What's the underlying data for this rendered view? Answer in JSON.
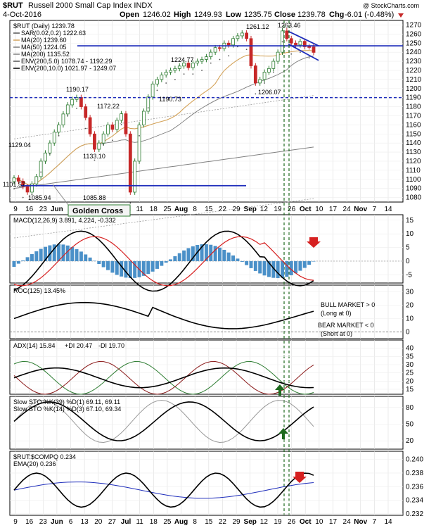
{
  "header": {
    "symbol": "$RUT",
    "name": "Russell 2000 Small Cap Index INDX",
    "site": "@ StockCharts.com",
    "date": "4-Oct-2016",
    "open_label": "Open",
    "open": "1246.02",
    "high_label": "High",
    "high": "1249.93",
    "low_label": "Low",
    "low": "1235.75",
    "close_label": "Close",
    "close": "1239.78",
    "chg_label": "Chg",
    "chg": "-6.01 (-0.48%)"
  },
  "colors": {
    "up_candle": "#2e7d32",
    "down_candle": "#c62828",
    "blue_line": "#1e2dbb",
    "ma20": "#d4a35a",
    "ma50": "#7a7a7a",
    "ma200": "#808080",
    "macd_hist": "#4a90c8",
    "signal_red": "#d62020",
    "green_marker": "#1e6a1e"
  },
  "x_axis": {
    "labels": [
      "9",
      "16",
      "23",
      "Jun",
      "6",
      "13",
      "20",
      "27",
      "Jul",
      "11",
      "18",
      "25",
      "Aug",
      "8",
      "15",
      "22",
      "29",
      "Sep",
      "12",
      "19",
      "26",
      "Oct",
      "10",
      "17",
      "24",
      "Nov",
      "7",
      "14"
    ],
    "bold": [
      "Jun",
      "Jul",
      "Aug",
      "Sep",
      "Oct",
      "Nov"
    ]
  },
  "chart_data": [
    {
      "type": "line",
      "panel": "price",
      "title": "$RUT (Daily) 1239.78",
      "legend": [
        "SAR(0.02,0.2) 1222.63",
        "MA(20) 1239.60",
        "MA(50) 1224.05",
        "MA(200) 1135.52",
        "ENV(200,5.0) 1078.74 - 1192.29",
        "ENV(200,10.0) 1021.97 - 1249.07"
      ],
      "y_ticks": [
        1080,
        1090,
        1100,
        1110,
        1120,
        1130,
        1140,
        1150,
        1160,
        1170,
        1180,
        1190,
        1200,
        1210,
        1220,
        1230,
        1240,
        1250,
        1260,
        1270
      ],
      "ylim": [
        1075,
        1275
      ],
      "close": [
        1101.57,
        1098,
        1092,
        1085.94,
        1095,
        1103,
        1120,
        1129.04,
        1140,
        1152,
        1160,
        1172,
        1182,
        1188,
        1190.17,
        1180,
        1168,
        1150,
        1133.1,
        1140,
        1150,
        1160,
        1155,
        1165,
        1172.22,
        1150,
        1085.88,
        1120,
        1160,
        1175,
        1190.73,
        1205,
        1210,
        1215,
        1218,
        1220,
        1222,
        1224.77,
        1228,
        1223,
        1228,
        1230,
        1232,
        1235,
        1240,
        1245,
        1244,
        1250,
        1248,
        1255,
        1258,
        1261.12,
        1255,
        1225,
        1206.07,
        1210,
        1218,
        1222,
        1230,
        1240,
        1263.46,
        1255,
        1250,
        1248,
        1252,
        1246,
        1245.79,
        1239.78
      ],
      "annotations": [
        "1261.12",
        "1263.46",
        "1224.77",
        "1190.17",
        "1190.73",
        "1172.22",
        "1206.07",
        "1133.10",
        "1129.04",
        "1101.57",
        "1085.94",
        "1085.88"
      ],
      "callout": "Golden Cross",
      "support_levels": [
        1247,
        1190,
        1093
      ]
    },
    {
      "type": "line",
      "panel": "macd",
      "title": "MACD(12,26,9) 3.891, 4.224, -0.332",
      "y_ticks": [
        -5,
        0,
        5,
        10,
        15
      ],
      "ylim": [
        -8,
        17
      ]
    },
    {
      "type": "line",
      "panel": "roc",
      "title": "ROC(125) 13.45%",
      "y_ticks": [
        0,
        10,
        20,
        30
      ],
      "ylim": [
        -5,
        35
      ],
      "notes": [
        "BULL MARKET > 0",
        "(Long at 0)",
        "BEAR MARKET < 0",
        "(Short at 0)"
      ]
    },
    {
      "type": "line",
      "panel": "adx",
      "title_parts": [
        "ADX(14) 15.84",
        "+DI 20.47",
        "-DI 19.70"
      ],
      "y_ticks": [
        15,
        20,
        25,
        30,
        35,
        40
      ],
      "ylim": [
        12,
        45
      ]
    },
    {
      "type": "line",
      "panel": "sto",
      "titles": [
        "Slow STO %K(39) %D(1) 69.11, 69.11",
        "Slow STO %K(14) %D(3) 67.10, 69.34"
      ],
      "y_ticks": [
        20,
        50,
        80
      ],
      "ylim": [
        5,
        100
      ]
    },
    {
      "type": "line",
      "panel": "ratio",
      "titles": [
        "$RUT:$COMPQ 0.234",
        "EMA(20) 0.236"
      ],
      "y_ticks": [
        "0.232",
        "0.234",
        "0.236",
        "0.238",
        "0.240"
      ],
      "ylim": [
        0.2318,
        0.2412
      ]
    }
  ]
}
